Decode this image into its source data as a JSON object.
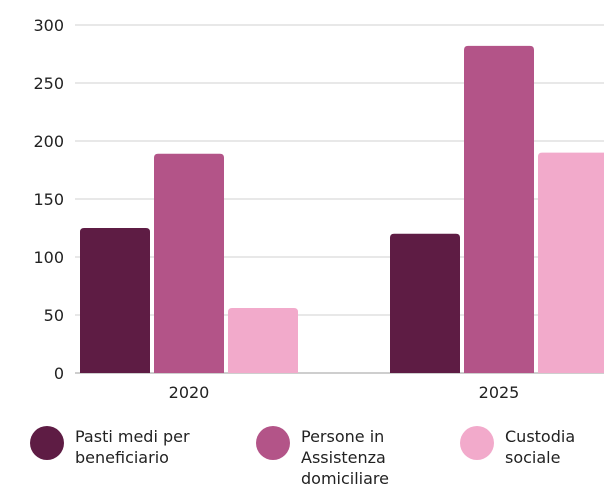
{
  "chart_data": {
    "type": "bar",
    "categories": [
      "2020",
      "2025"
    ],
    "series": [
      {
        "name": "Pasti medi per beneficiario",
        "values": [
          125,
          120
        ],
        "color": "#5e1c44"
      },
      {
        "name": "Persone in Assistenza domiciliare",
        "values": [
          189,
          282
        ],
        "color": "#b35488"
      },
      {
        "name": "Custodia sociale",
        "values": [
          56,
          190
        ],
        "color": "#f2aacb"
      }
    ],
    "yticks": [
      "0",
      "50",
      "100",
      "150",
      "200",
      "250",
      "300"
    ],
    "ylim": [
      0,
      300
    ],
    "grid": true,
    "legend_position": "bottom",
    "title": "",
    "xlabel": "",
    "ylabel": ""
  },
  "legend": {
    "items": [
      {
        "label": "Pasti medi per\nbeneficiario"
      },
      {
        "label": "Persone in\nAssistenza\ndomiciliare"
      },
      {
        "label": "Custodia\nsociale"
      }
    ]
  }
}
